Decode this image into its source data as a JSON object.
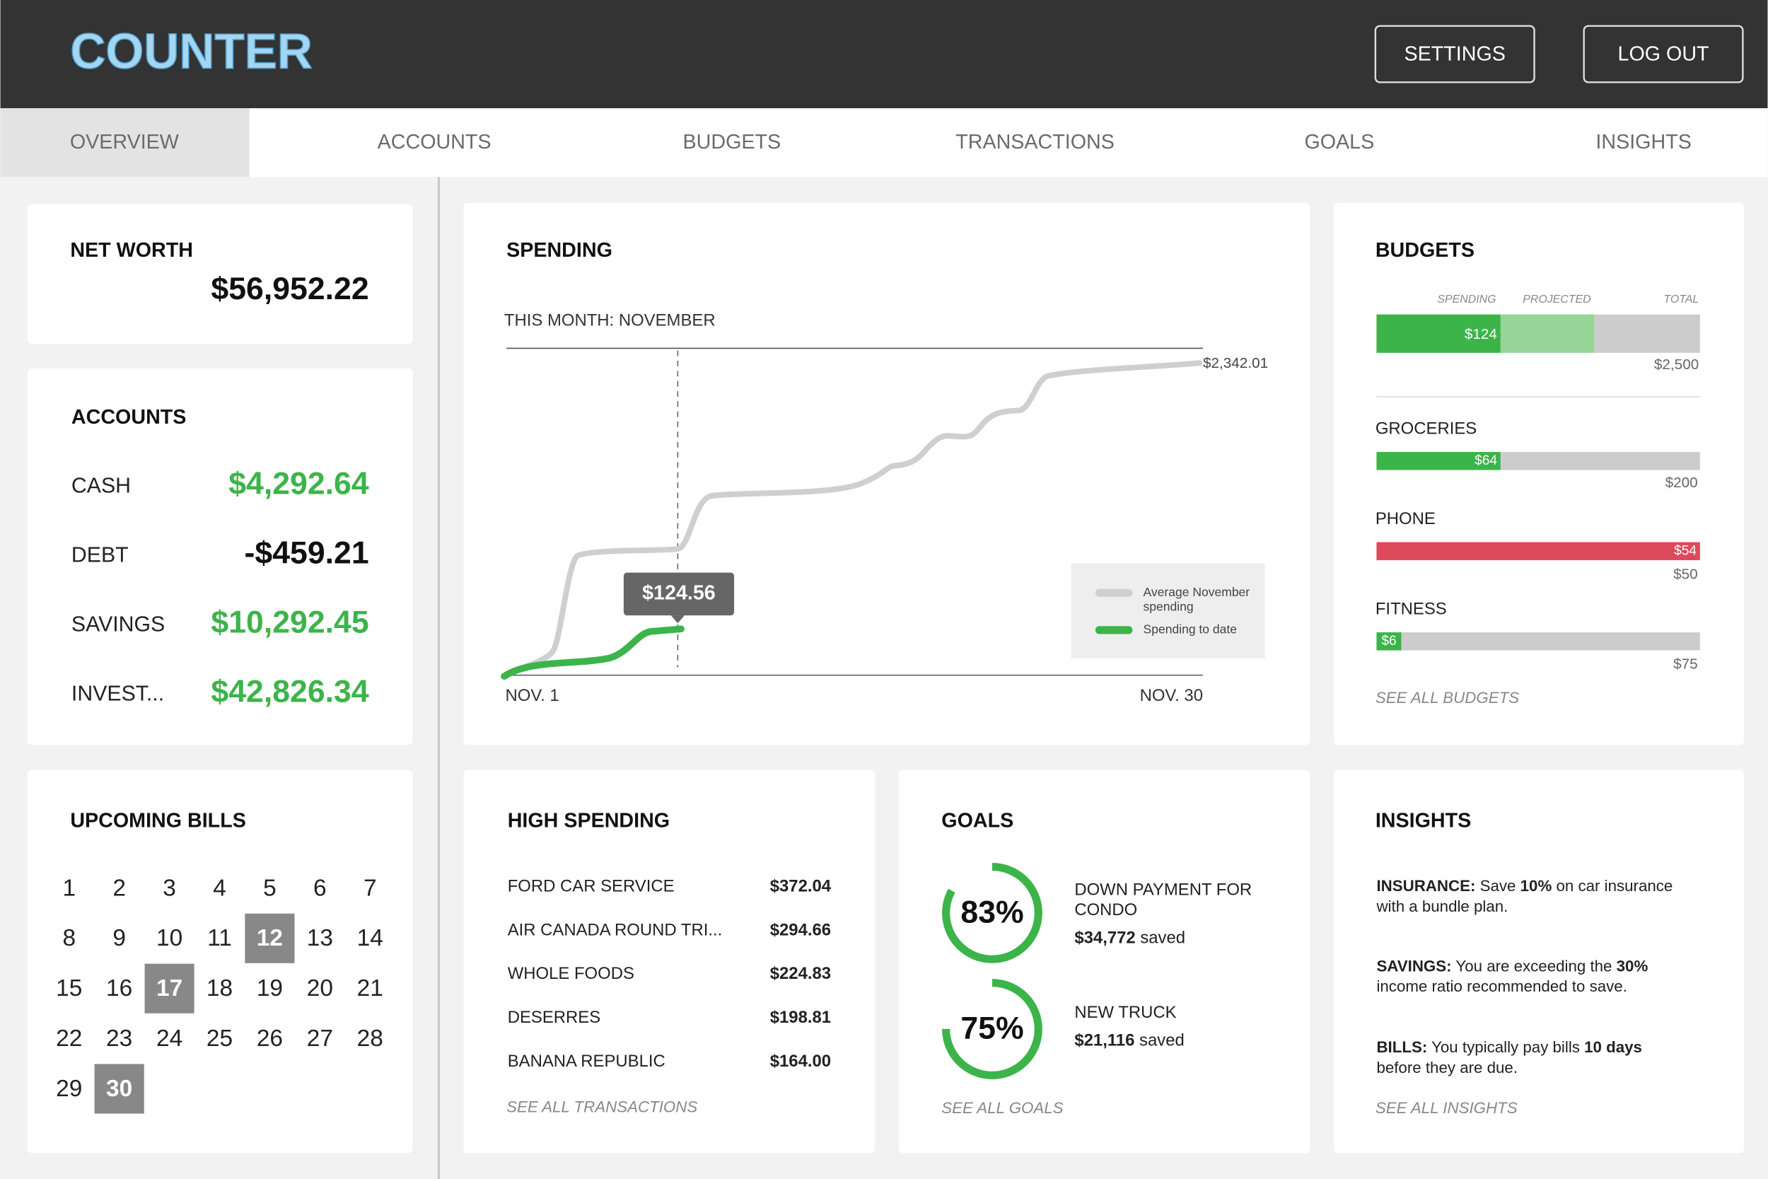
{
  "header": {
    "logo": "COUNTER",
    "buttons": [
      "SETTINGS",
      "LOG OUT"
    ]
  },
  "nav": [
    "OVERVIEW",
    "ACCOUNTS",
    "BUDGETS",
    "TRANSACTIONS",
    "GOALS",
    "INSIGHTS"
  ],
  "net_worth": {
    "title": "NET WORTH",
    "value": "$56,952.22"
  },
  "accounts": {
    "title": "ACCOUNTS",
    "rows": [
      {
        "label": "CASH",
        "value": "$4,292.64",
        "color": "#3cb44a"
      },
      {
        "label": "DEBT",
        "value": "-$459.21",
        "color": "#111111"
      },
      {
        "label": "SAVINGS",
        "value": "$10,292.45",
        "color": "#3cb44a"
      },
      {
        "label": "INVEST...",
        "value": "$42,826.34",
        "color": "#3cb44a"
      }
    ]
  },
  "upcoming_bills": {
    "title": "UPCOMING BILLS",
    "days": [
      {
        "label": "1"
      },
      {
        "label": "2"
      },
      {
        "label": "3"
      },
      {
        "label": "4"
      },
      {
        "label": "5"
      },
      {
        "label": "6"
      },
      {
        "label": "7"
      },
      {
        "label": "8"
      },
      {
        "label": "9"
      },
      {
        "label": "10"
      },
      {
        "label": "11"
      },
      {
        "label": "12",
        "due": true
      },
      {
        "label": "13"
      },
      {
        "label": "14"
      },
      {
        "label": "15"
      },
      {
        "label": "16"
      },
      {
        "label": "17",
        "due": true
      },
      {
        "label": "18"
      },
      {
        "label": "19"
      },
      {
        "label": "20"
      },
      {
        "label": "21"
      },
      {
        "label": "22"
      },
      {
        "label": "23"
      },
      {
        "label": "24"
      },
      {
        "label": "25"
      },
      {
        "label": "26"
      },
      {
        "label": "27"
      },
      {
        "label": "28"
      },
      {
        "label": "29"
      },
      {
        "label": "30",
        "due": true
      }
    ]
  },
  "spending": {
    "title": "SPENDING",
    "subtitle": "THIS MONTH: NOVEMBER",
    "start_label": "NOV. 1",
    "end_label": "NOV. 30",
    "end_value": "$2,342.01",
    "tooltip": "$124.56",
    "legend": [
      "Average November",
      "spending",
      "Spending to date"
    ]
  },
  "budgets": {
    "title": "BUDGETS",
    "columns": [
      "SPENDING",
      "PROJECTED",
      "TOTAL"
    ],
    "overall": {
      "spent": "$124",
      "total": "$2,500"
    },
    "items": [
      {
        "name": "GROCERIES",
        "spent": "$64",
        "total": "$200"
      },
      {
        "name": "PHONE",
        "spent": "$54",
        "total": "$50"
      },
      {
        "name": "FITNESS",
        "spent": "$6",
        "total": "$75"
      }
    ],
    "link": "SEE ALL BUDGETS"
  },
  "high_spending": {
    "title": "HIGH SPENDING",
    "rows": [
      [
        "FORD CAR SERVICE",
        "$372.04"
      ],
      [
        "AIR CANADA ROUND TRI...",
        "$294.66"
      ],
      [
        "WHOLE FOODS",
        "$224.83"
      ],
      [
        "DESERRES",
        "$198.81"
      ],
      [
        "BANANA REPUBLIC",
        "$164.00"
      ]
    ],
    "link": "SEE ALL TRANSACTIONS"
  },
  "goals": {
    "title": "GOALS",
    "items": [
      {
        "progress": 83,
        "progress_label": "83%",
        "name": [
          "DOWN PAYMENT FOR",
          "CONDO"
        ],
        "amount": "$34,772",
        "suffix": " saved"
      },
      {
        "progress": 75,
        "progress_label": "75%",
        "name": [
          "NEW TRUCK"
        ],
        "amount": "$21,116",
        "suffix": " saved"
      }
    ],
    "link": "SEE ALL GOALS"
  },
  "insights": {
    "title": "INSIGHTS",
    "paragraphs": [
      [
        [
          {
            "t": "INSURANCE:",
            "b": true
          },
          {
            "t": " Save "
          },
          {
            "t": "10%",
            "b": true
          },
          {
            "t": " on car insurance"
          }
        ],
        [
          {
            "t": "with a bundle plan."
          }
        ]
      ],
      [
        [
          {
            "t": "SAVINGS:",
            "b": true
          },
          {
            "t": " You are exceeding the "
          },
          {
            "t": "30%",
            "b": true
          }
        ],
        [
          {
            "t": "income ratio recommended to save."
          }
        ]
      ],
      [
        [
          {
            "t": "BILLS:",
            "b": true
          },
          {
            "t": " You typically pay bills "
          },
          {
            "t": "10 days",
            "b": true
          }
        ],
        [
          {
            "t": "before they are due."
          }
        ]
      ]
    ],
    "link": "SEE ALL INSIGHTS"
  }
}
